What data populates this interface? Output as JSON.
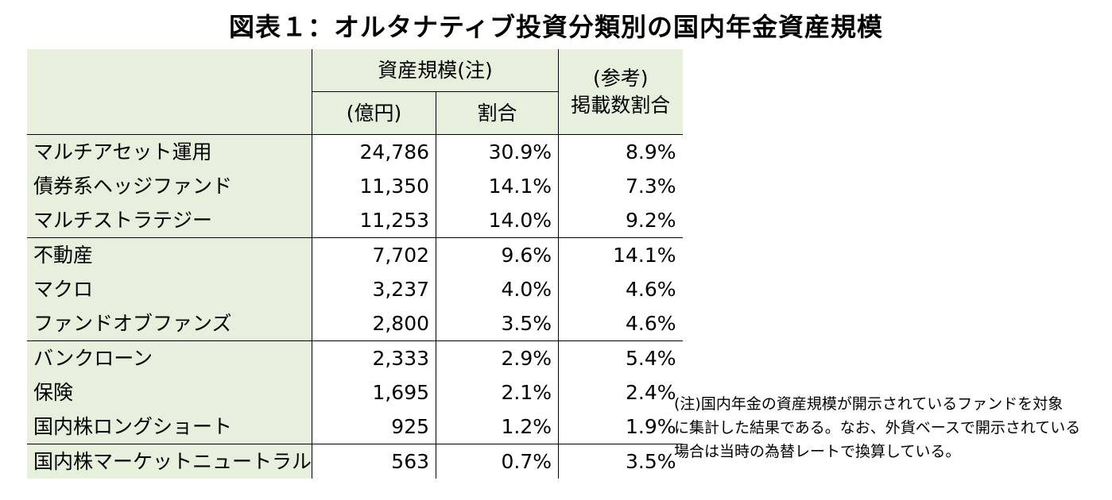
{
  "title": "図表１：オルタナティブ投資分類別の国内年金資産規模",
  "header": {
    "asset_size": "資産規模(注)",
    "unit": "(億円)",
    "share": "割合",
    "ref_line1": "(参考)",
    "ref_line2": "掲載数割合"
  },
  "rows": [
    {
      "name": "マルチアセット運用",
      "value": "24,786",
      "share": "30.9%",
      "ref": "8.9%"
    },
    {
      "name": "債券系ヘッジファンド",
      "value": "11,350",
      "share": "14.1%",
      "ref": "7.3%"
    },
    {
      "name": "マルチストラテジー",
      "value": "11,253",
      "share": "14.0%",
      "ref": "9.2%"
    },
    {
      "name": "不動産",
      "value": "7,702",
      "share": "9.6%",
      "ref": "14.1%"
    },
    {
      "name": "マクロ",
      "value": "3,237",
      "share": "4.0%",
      "ref": "4.6%"
    },
    {
      "name": "ファンドオブファンズ",
      "value": "2,800",
      "share": "3.5%",
      "ref": "4.6%"
    },
    {
      "name": "バンクローン",
      "value": "2,333",
      "share": "2.9%",
      "ref": "5.4%"
    },
    {
      "name": "保険",
      "value": "1,695",
      "share": "2.1%",
      "ref": "2.4%"
    },
    {
      "name": "国内株ロングショート",
      "value": "925",
      "share": "1.2%",
      "ref": "1.9%"
    },
    {
      "name": "国内株マーケットニュートラル",
      "value": "563",
      "share": "0.7%",
      "ref": "3.5%"
    }
  ],
  "note": {
    "line1": "(注)国内年金の資産規模が開示されているファンドを対象",
    "line2": "に集計した結果である。なお、外貨ベースで開示されている",
    "line3": "場合は当時の為替レートで換算している。"
  }
}
